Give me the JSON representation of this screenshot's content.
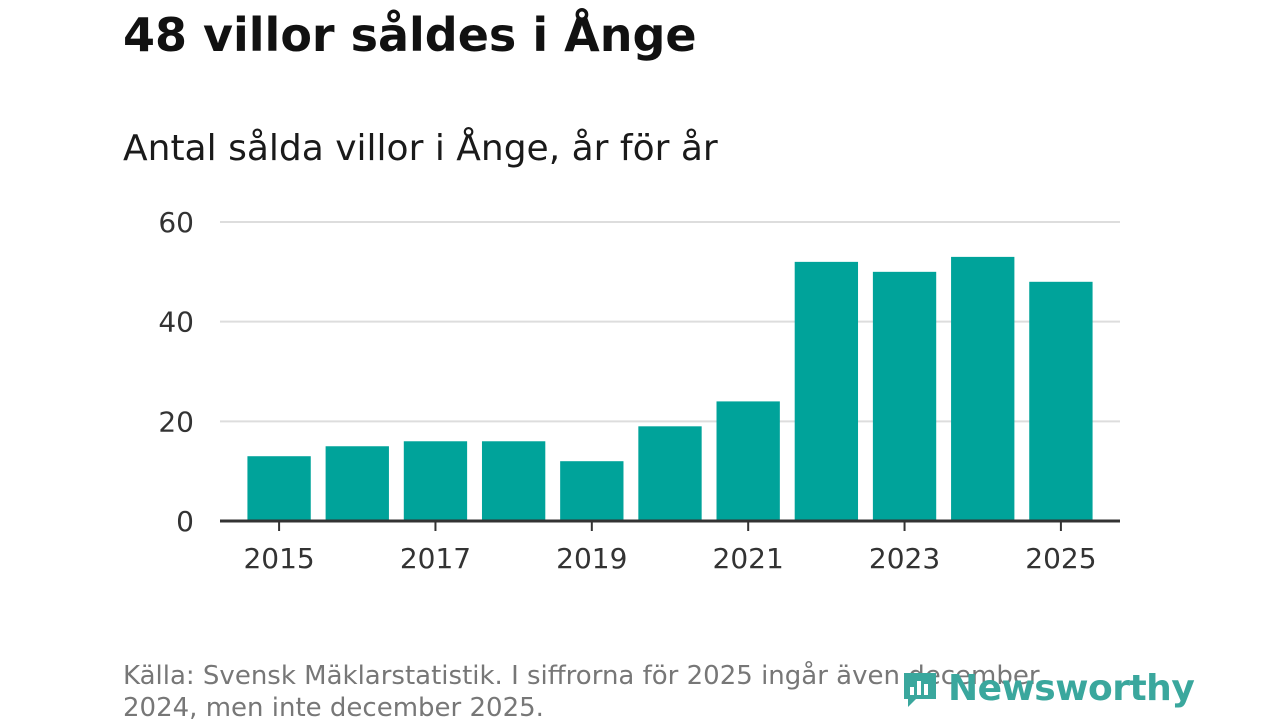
{
  "header": {
    "title": "48 villor såldes i Ånge",
    "subtitle": "Antal sålda villor i Ånge, år för år"
  },
  "footer": {
    "source": "Källa: Svensk Mäklarstatistik. I siffrorna för 2025 ingår även december 2024, men inte december 2025.",
    "brand": "Newsworthy"
  },
  "colors": {
    "bar": "#00a39a",
    "grid": "#dddddd",
    "axis": "#333333",
    "brand": "#3aa79d"
  },
  "chart_data": {
    "type": "bar",
    "title": "Antal sålda villor i Ånge, år för år",
    "xlabel": "",
    "ylabel": "",
    "categories": [
      "2015",
      "2016",
      "2017",
      "2018",
      "2019",
      "2020",
      "2021",
      "2022",
      "2023",
      "2024",
      "2025"
    ],
    "values": [
      13,
      15,
      16,
      16,
      12,
      19,
      24,
      52,
      50,
      53,
      48
    ],
    "ylim": [
      0,
      60
    ],
    "yticks": [
      0,
      20,
      40,
      60
    ],
    "xtick_labels": [
      "2015",
      "2017",
      "2019",
      "2021",
      "2023",
      "2025"
    ],
    "grid": true
  }
}
